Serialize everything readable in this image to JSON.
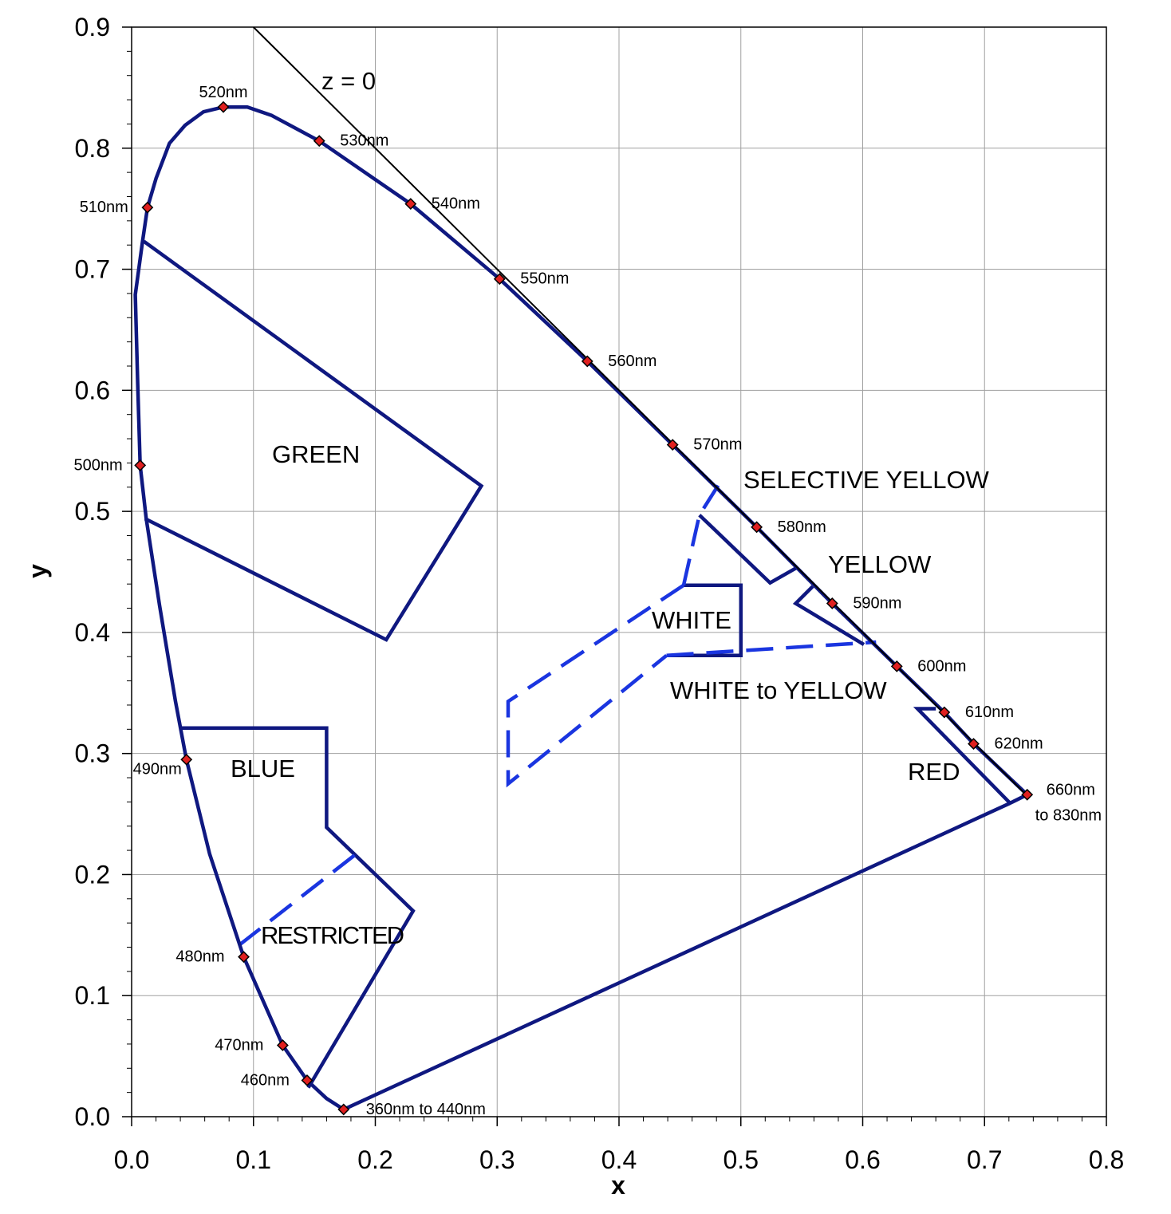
{
  "chart_data": {
    "type": "line",
    "xlabel": "x",
    "ylabel": "y",
    "xlim": [
      0,
      0.8
    ],
    "ylim": [
      0,
      0.9
    ],
    "grid": true,
    "xticks": [
      "0.0",
      "0.1",
      "0.2",
      "0.3",
      "0.4",
      "0.5",
      "0.6",
      "0.7",
      "0.8"
    ],
    "yticks": [
      "0.0",
      "0.1",
      "0.2",
      "0.3",
      "0.4",
      "0.5",
      "0.6",
      "0.7",
      "0.8",
      "0.9"
    ],
    "z_line": {
      "label": "z = 0",
      "points": [
        [
          0.1,
          0.9
        ],
        [
          0.735,
          0.265
        ]
      ]
    },
    "spectral_locus": [
      [
        0.174,
        0.006
      ],
      [
        0.16,
        0.015
      ],
      [
        0.144,
        0.03
      ],
      [
        0.124,
        0.059
      ],
      [
        0.092,
        0.132
      ],
      [
        0.064,
        0.217
      ],
      [
        0.045,
        0.295
      ],
      [
        0.036,
        0.343
      ],
      [
        0.023,
        0.422
      ],
      [
        0.012,
        0.494
      ],
      [
        0.007,
        0.538
      ],
      [
        0.005,
        0.606
      ],
      [
        0.003,
        0.679
      ],
      [
        0.009,
        0.723
      ],
      [
        0.013,
        0.751
      ],
      [
        0.02,
        0.775
      ],
      [
        0.031,
        0.804
      ],
      [
        0.044,
        0.819
      ],
      [
        0.059,
        0.83
      ],
      [
        0.0753,
        0.834
      ],
      [
        0.095,
        0.834
      ],
      [
        0.115,
        0.827
      ],
      [
        0.154,
        0.806
      ],
      [
        0.229,
        0.754
      ],
      [
        0.302,
        0.692
      ],
      [
        0.374,
        0.624
      ],
      [
        0.444,
        0.555
      ],
      [
        0.513,
        0.487
      ],
      [
        0.575,
        0.424
      ],
      [
        0.628,
        0.372
      ],
      [
        0.667,
        0.334
      ],
      [
        0.691,
        0.308
      ],
      [
        0.735,
        0.266
      ],
      [
        0.721,
        0.259
      ],
      [
        0.174,
        0.006
      ]
    ],
    "wavelength_markers": [
      {
        "label": "360nm to 440nm",
        "x": 0.174,
        "y": 0.006
      },
      {
        "label": "460nm",
        "x": 0.144,
        "y": 0.03
      },
      {
        "label": "470nm",
        "x": 0.124,
        "y": 0.059
      },
      {
        "label": "480nm",
        "x": 0.092,
        "y": 0.132
      },
      {
        "label": "490nm",
        "x": 0.045,
        "y": 0.295
      },
      {
        "label": "500nm",
        "x": 0.007,
        "y": 0.538
      },
      {
        "label": "510nm",
        "x": 0.013,
        "y": 0.751
      },
      {
        "label": "520nm",
        "x": 0.0753,
        "y": 0.834
      },
      {
        "label": "530nm",
        "x": 0.154,
        "y": 0.806
      },
      {
        "label": "540nm",
        "x": 0.229,
        "y": 0.754
      },
      {
        "label": "550nm",
        "x": 0.302,
        "y": 0.692
      },
      {
        "label": "560nm",
        "x": 0.374,
        "y": 0.624
      },
      {
        "label": "570nm",
        "x": 0.444,
        "y": 0.555
      },
      {
        "label": "580nm",
        "x": 0.513,
        "y": 0.487
      },
      {
        "label": "590nm",
        "x": 0.575,
        "y": 0.424
      },
      {
        "label": "600nm",
        "x": 0.628,
        "y": 0.372
      },
      {
        "label": "610nm",
        "x": 0.667,
        "y": 0.334
      },
      {
        "label": "620nm",
        "x": 0.691,
        "y": 0.308
      },
      {
        "label": "660nm",
        "label2": "to 830nm",
        "x": 0.735,
        "y": 0.266
      }
    ],
    "regions": [
      {
        "name": "GREEN",
        "solid": [
          [
            [
              0.01,
              0.723
            ],
            [
              0.287,
              0.521
            ],
            [
              0.209,
              0.394
            ],
            [
              0.011,
              0.494
            ]
          ]
        ],
        "dashed": []
      },
      {
        "name": "BLUE",
        "solid": [
          [
            [
              0.039,
              0.321
            ],
            [
              0.16,
              0.321
            ],
            [
              0.16,
              0.239
            ],
            [
              0.231,
              0.17
            ],
            [
              0.145,
              0.024
            ]
          ]
        ],
        "dashed": []
      },
      {
        "name": "RESTRICTED",
        "solid": [],
        "dashed": [
          [
            [
              0.183,
              0.216
            ],
            [
              0.086,
              0.14
            ]
          ]
        ]
      },
      {
        "name": "WHITE",
        "solid": [
          [
            [
              0.453,
              0.439
            ],
            [
              0.5,
              0.439
            ],
            [
              0.5,
              0.381
            ],
            [
              0.439,
              0.381
            ]
          ]
        ],
        "dashed": [
          [
            [
              0.453,
              0.439
            ],
            [
              0.309,
              0.343
            ],
            [
              0.309,
              0.275
            ],
            [
              0.439,
              0.381
            ]
          ]
        ]
      },
      {
        "name": "WHITE to YELLOW",
        "solid": [],
        "dashed": [
          [
            [
              0.439,
              0.381
            ],
            [
              0.611,
              0.392
            ]
          ],
          [
            [
              0.453,
              0.439
            ],
            [
              0.466,
              0.497
            ],
            [
              0.483,
              0.524
            ]
          ]
        ]
      },
      {
        "name": "SELECTIVE YELLOW",
        "solid": [
          [
            [
              0.466,
              0.497
            ],
            [
              0.524,
              0.441
            ],
            [
              0.545,
              0.453
            ]
          ]
        ],
        "dashed": []
      },
      {
        "name": "YELLOW",
        "solid": [
          [
            [
              0.559,
              0.438
            ],
            [
              0.545,
              0.424
            ],
            [
              0.601,
              0.39
            ]
          ]
        ],
        "dashed": []
      },
      {
        "name": "RED",
        "solid": [
          [
            [
              0.66,
              0.337
            ],
            [
              0.645,
              0.337
            ],
            [
              0.721,
              0.259
            ]
          ]
        ],
        "dashed": []
      }
    ],
    "colors": {
      "locus": "#0f1880",
      "dashed": "#1a35e0",
      "marker": "#e02020",
      "zline": "#000000",
      "grid": "#a0a0a0"
    }
  }
}
